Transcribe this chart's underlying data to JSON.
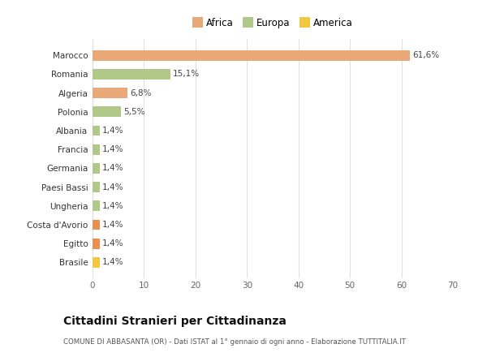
{
  "categories": [
    "Brasile",
    "Egitto",
    "Costa d'Avorio",
    "Ungheria",
    "Paesi Bassi",
    "Germania",
    "Francia",
    "Albania",
    "Polonia",
    "Algeria",
    "Romania",
    "Marocco"
  ],
  "values": [
    1.4,
    1.4,
    1.4,
    1.4,
    1.4,
    1.4,
    1.4,
    1.4,
    5.5,
    6.8,
    15.1,
    61.6
  ],
  "colors": [
    "#f0c840",
    "#e89050",
    "#e89050",
    "#b0c888",
    "#b0c888",
    "#b0c888",
    "#b0c888",
    "#b0c888",
    "#b0c888",
    "#e8a878",
    "#b0c888",
    "#e8a878"
  ],
  "labels": [
    "1,4%",
    "1,4%",
    "1,4%",
    "1,4%",
    "1,4%",
    "1,4%",
    "1,4%",
    "1,4%",
    "5,5%",
    "6,8%",
    "15,1%",
    "61,6%"
  ],
  "legend": [
    {
      "label": "Africa",
      "color": "#e8a878"
    },
    {
      "label": "Europa",
      "color": "#b0c888"
    },
    {
      "label": "America",
      "color": "#f0c840"
    }
  ],
  "xlim": [
    0,
    70
  ],
  "xticks": [
    0,
    10,
    20,
    30,
    40,
    50,
    60,
    70
  ],
  "title": "Cittadini Stranieri per Cittadinanza",
  "subtitle": "COMUNE DI ABBASANTA (OR) - Dati ISTAT al 1° gennaio di ogni anno - Elaborazione TUTTITALIA.IT",
  "background_color": "#ffffff",
  "grid_color": "#e0e0e0"
}
